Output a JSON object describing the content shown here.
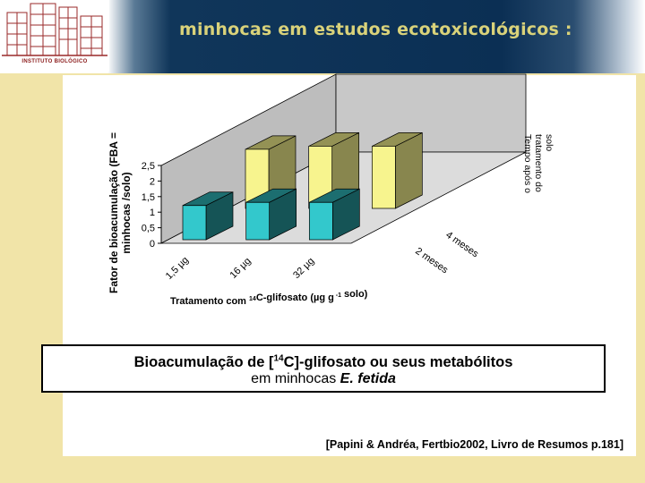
{
  "header": {
    "title": "minhocas em estudos ecotoxicológicos :",
    "logo_text": "INSTITUTO BIOLÓGICO"
  },
  "caption": {
    "line1": "Bioacumulação de [14C]-glifosato ou seus metabólitos",
    "line2": "em minhocas E. fetida"
  },
  "reference": "[Papini & Andréa, Fertbio2002, Livro de Resumos p.181]",
  "colors": {
    "front_series": "#33c8cc",
    "back_series": "#f7f48e",
    "wall": "#c8c8c8",
    "floor": "#dcdcdc"
  },
  "chart_data": {
    "type": "bar",
    "title": "",
    "ylabel": "Fator de bioacumulação (FBA = minhocas /solo)",
    "xlabel": "Tratamento com 14C-glifosato (µg g-1 solo)",
    "zlabel": "Tempo após o tratamento do solo",
    "categories": [
      "1,5 µg",
      "16 µg",
      "32 µg"
    ],
    "series": [
      {
        "name": "2 meses",
        "values": [
          1.1,
          1.2,
          1.2
        ]
      },
      {
        "name": "4 meses",
        "values": [
          1.9,
          2.0,
          2.0
        ]
      }
    ],
    "ylim": [
      0,
      2.5
    ],
    "yticks": [
      "0",
      "0,5",
      "1",
      "1,5",
      "2",
      "2,5"
    ],
    "grid": false
  }
}
